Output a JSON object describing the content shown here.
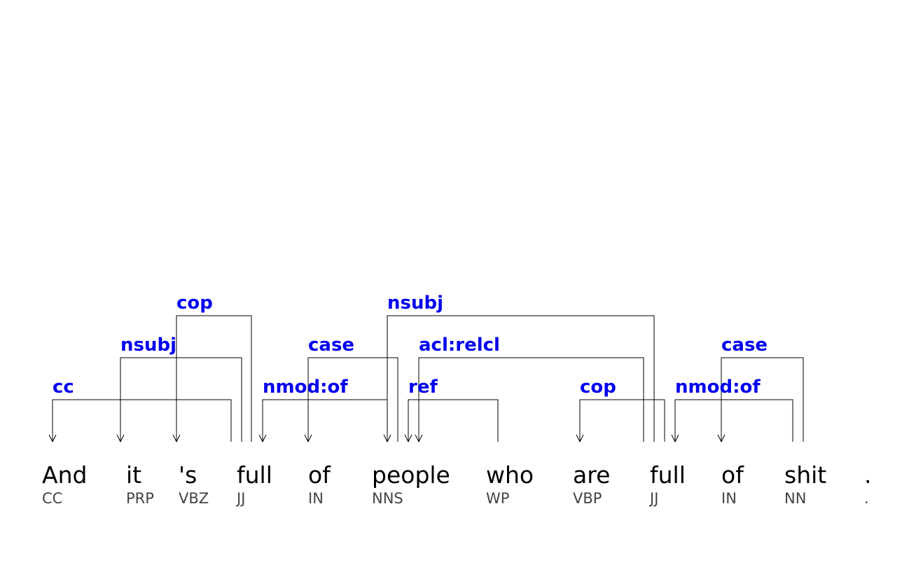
{
  "tokens": [
    {
      "word": "And",
      "tag": "CC"
    },
    {
      "word": "it",
      "tag": "PRP"
    },
    {
      "word": "'s",
      "tag": "VBZ"
    },
    {
      "word": "full",
      "tag": "JJ"
    },
    {
      "word": "of",
      "tag": "IN"
    },
    {
      "word": "people",
      "tag": "NNS"
    },
    {
      "word": "who",
      "tag": "WP"
    },
    {
      "word": "are",
      "tag": "VBP"
    },
    {
      "word": "full",
      "tag": "JJ"
    },
    {
      "word": "of",
      "tag": "IN"
    },
    {
      "word": "shit",
      "tag": "NN"
    },
    {
      "word": ".",
      "tag": "."
    }
  ],
  "arcs": [
    {
      "label": "cc",
      "head": 3,
      "dep": 0
    },
    {
      "label": "nsubj",
      "head": 3,
      "dep": 1
    },
    {
      "label": "cop",
      "head": 3,
      "dep": 2
    },
    {
      "label": "nmod:of",
      "head": 3,
      "dep": 5
    },
    {
      "label": "case",
      "head": 5,
      "dep": 4
    },
    {
      "label": "nsubj",
      "head": 8,
      "dep": 5
    },
    {
      "label": "acl:relcl",
      "head": 5,
      "dep": 8
    },
    {
      "label": "ref",
      "head": 5,
      "dep": 6
    },
    {
      "label": "cop",
      "head": 8,
      "dep": 7
    },
    {
      "label": "nmod:of",
      "head": 8,
      "dep": 10
    },
    {
      "label": "case",
      "head": 10,
      "dep": 9
    }
  ],
  "colors": {
    "label": "#0000ee",
    "word": "#000000",
    "tag": "#444444",
    "edge": "#000000"
  }
}
